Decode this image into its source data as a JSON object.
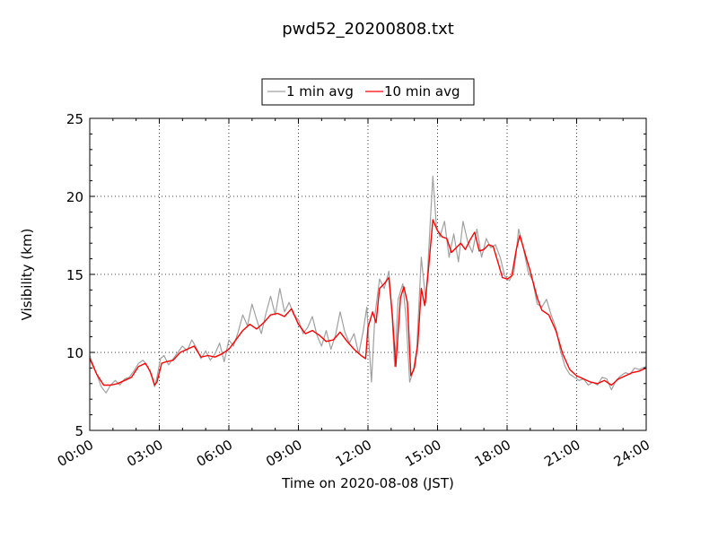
{
  "chart_data": {
    "type": "line",
    "title": "pwd52_20200808.txt",
    "xlabel": "Time on 2020-08-08 (JST)",
    "ylabel": "Visibility (km)",
    "x_unit": "hour of day",
    "xlim": [
      0,
      24
    ],
    "ylim": [
      5,
      25
    ],
    "grid": true,
    "legend_position": "top-center",
    "x_tick_labels": [
      "00:00",
      "03:00",
      "06:00",
      "09:00",
      "12:00",
      "15:00",
      "18:00",
      "21:00",
      "24:00"
    ],
    "y_tick_labels": [
      "5",
      "10",
      "15",
      "20",
      "25"
    ],
    "series": [
      {
        "name": "1 min avg",
        "color": "#a0a0a0",
        "points": [
          [
            0,
            9.8
          ],
          [
            0.3,
            8.6
          ],
          [
            0.5,
            7.8
          ],
          [
            0.7,
            7.4
          ],
          [
            0.9,
            7.9
          ],
          [
            1.1,
            8.2
          ],
          [
            1.3,
            7.9
          ],
          [
            1.5,
            8.3
          ],
          [
            1.7,
            8.4
          ],
          [
            1.9,
            8.8
          ],
          [
            2.1,
            9.3
          ],
          [
            2.3,
            9.5
          ],
          [
            2.5,
            9.1
          ],
          [
            2.7,
            8.4
          ],
          [
            2.8,
            7.8
          ],
          [
            2.9,
            8.4
          ],
          [
            3.05,
            9.6
          ],
          [
            3.2,
            9.8
          ],
          [
            3.4,
            9.2
          ],
          [
            3.6,
            9.6
          ],
          [
            3.8,
            10.0
          ],
          [
            4.0,
            10.4
          ],
          [
            4.2,
            10.1
          ],
          [
            4.4,
            10.8
          ],
          [
            4.6,
            10.3
          ],
          [
            4.8,
            9.6
          ],
          [
            5.0,
            10.1
          ],
          [
            5.2,
            9.5
          ],
          [
            5.4,
            9.9
          ],
          [
            5.6,
            10.6
          ],
          [
            5.8,
            9.4
          ],
          [
            6.0,
            10.8
          ],
          [
            6.2,
            10.4
          ],
          [
            6.4,
            11.3
          ],
          [
            6.6,
            12.4
          ],
          [
            6.8,
            11.7
          ],
          [
            7.0,
            13.1
          ],
          [
            7.2,
            12.1
          ],
          [
            7.4,
            11.2
          ],
          [
            7.6,
            12.5
          ],
          [
            7.8,
            13.6
          ],
          [
            8.0,
            12.4
          ],
          [
            8.2,
            14.1
          ],
          [
            8.4,
            12.6
          ],
          [
            8.6,
            13.2
          ],
          [
            8.8,
            12.4
          ],
          [
            9.0,
            12.1
          ],
          [
            9.2,
            11.2
          ],
          [
            9.4,
            11.6
          ],
          [
            9.6,
            12.3
          ],
          [
            9.8,
            11.1
          ],
          [
            10.0,
            10.4
          ],
          [
            10.2,
            11.4
          ],
          [
            10.4,
            10.2
          ],
          [
            10.6,
            11.1
          ],
          [
            10.8,
            12.6
          ],
          [
            11.0,
            11.3
          ],
          [
            11.2,
            10.6
          ],
          [
            11.4,
            11.2
          ],
          [
            11.6,
            9.9
          ],
          [
            11.8,
            11.4
          ],
          [
            11.95,
            12.9
          ],
          [
            12.05,
            10.4
          ],
          [
            12.15,
            8.1
          ],
          [
            12.3,
            12.4
          ],
          [
            12.5,
            14.7
          ],
          [
            12.7,
            14.1
          ],
          [
            12.9,
            15.2
          ],
          [
            13.05,
            12.1
          ],
          [
            13.15,
            9.1
          ],
          [
            13.3,
            13.4
          ],
          [
            13.5,
            14.4
          ],
          [
            13.65,
            12.1
          ],
          [
            13.8,
            8.1
          ],
          [
            13.95,
            8.8
          ],
          [
            14.1,
            10.2
          ],
          [
            14.3,
            16.1
          ],
          [
            14.5,
            13.2
          ],
          [
            14.65,
            17.4
          ],
          [
            14.8,
            21.3
          ],
          [
            14.95,
            18.1
          ],
          [
            15.1,
            17.4
          ],
          [
            15.3,
            18.4
          ],
          [
            15.5,
            16.1
          ],
          [
            15.7,
            17.6
          ],
          [
            15.9,
            15.8
          ],
          [
            16.1,
            18.4
          ],
          [
            16.3,
            17.1
          ],
          [
            16.5,
            16.4
          ],
          [
            16.7,
            17.9
          ],
          [
            16.9,
            16.1
          ],
          [
            17.1,
            17.3
          ],
          [
            17.3,
            16.7
          ],
          [
            17.5,
            16.9
          ],
          [
            17.7,
            16.1
          ],
          [
            17.9,
            14.9
          ],
          [
            18.1,
            14.6
          ],
          [
            18.3,
            15.2
          ],
          [
            18.5,
            17.9
          ],
          [
            18.7,
            16.7
          ],
          [
            18.9,
            15.2
          ],
          [
            19.1,
            14.6
          ],
          [
            19.3,
            13.1
          ],
          [
            19.5,
            12.9
          ],
          [
            19.7,
            13.4
          ],
          [
            19.9,
            12.4
          ],
          [
            20.1,
            11.6
          ],
          [
            20.3,
            10.1
          ],
          [
            20.5,
            9.1
          ],
          [
            20.7,
            8.6
          ],
          [
            20.9,
            8.4
          ],
          [
            21.1,
            8.2
          ],
          [
            21.3,
            8.3
          ],
          [
            21.5,
            7.9
          ],
          [
            21.7,
            8.1
          ],
          [
            21.9,
            7.9
          ],
          [
            22.1,
            8.4
          ],
          [
            22.3,
            8.3
          ],
          [
            22.5,
            7.6
          ],
          [
            22.7,
            8.2
          ],
          [
            22.9,
            8.5
          ],
          [
            23.1,
            8.7
          ],
          [
            23.3,
            8.6
          ],
          [
            23.5,
            9.0
          ],
          [
            23.7,
            8.9
          ],
          [
            24.0,
            9.1
          ]
        ]
      },
      {
        "name": "10 min avg",
        "color": "#ff0000",
        "points": [
          [
            0,
            9.6
          ],
          [
            0.3,
            8.6
          ],
          [
            0.6,
            7.9
          ],
          [
            0.9,
            7.9
          ],
          [
            1.2,
            8.0
          ],
          [
            1.5,
            8.2
          ],
          [
            1.8,
            8.4
          ],
          [
            2.1,
            9.1
          ],
          [
            2.4,
            9.3
          ],
          [
            2.6,
            8.8
          ],
          [
            2.8,
            7.9
          ],
          [
            2.9,
            8.1
          ],
          [
            3.1,
            9.3
          ],
          [
            3.3,
            9.4
          ],
          [
            3.6,
            9.5
          ],
          [
            3.9,
            10.0
          ],
          [
            4.2,
            10.2
          ],
          [
            4.5,
            10.4
          ],
          [
            4.8,
            9.7
          ],
          [
            5.1,
            9.8
          ],
          [
            5.4,
            9.7
          ],
          [
            5.7,
            9.9
          ],
          [
            6.0,
            10.2
          ],
          [
            6.3,
            10.8
          ],
          [
            6.6,
            11.4
          ],
          [
            6.9,
            11.8
          ],
          [
            7.2,
            11.5
          ],
          [
            7.5,
            11.9
          ],
          [
            7.8,
            12.4
          ],
          [
            8.1,
            12.5
          ],
          [
            8.4,
            12.3
          ],
          [
            8.7,
            12.8
          ],
          [
            9.0,
            11.8
          ],
          [
            9.3,
            11.2
          ],
          [
            9.6,
            11.4
          ],
          [
            9.9,
            11.1
          ],
          [
            10.2,
            10.7
          ],
          [
            10.5,
            10.8
          ],
          [
            10.8,
            11.3
          ],
          [
            11.1,
            10.7
          ],
          [
            11.4,
            10.2
          ],
          [
            11.7,
            9.8
          ],
          [
            11.9,
            9.6
          ],
          [
            12.0,
            11.6
          ],
          [
            12.2,
            12.6
          ],
          [
            12.35,
            11.9
          ],
          [
            12.5,
            14.1
          ],
          [
            12.7,
            14.4
          ],
          [
            12.9,
            14.8
          ],
          [
            13.05,
            12.4
          ],
          [
            13.2,
            9.1
          ],
          [
            13.4,
            13.5
          ],
          [
            13.55,
            14.2
          ],
          [
            13.7,
            13.2
          ],
          [
            13.85,
            8.5
          ],
          [
            14.0,
            9.0
          ],
          [
            14.15,
            10.5
          ],
          [
            14.3,
            14.1
          ],
          [
            14.45,
            13.0
          ],
          [
            14.6,
            15.2
          ],
          [
            14.8,
            18.5
          ],
          [
            15.0,
            17.8
          ],
          [
            15.2,
            17.4
          ],
          [
            15.4,
            17.3
          ],
          [
            15.6,
            16.4
          ],
          [
            15.8,
            16.7
          ],
          [
            16.0,
            17.0
          ],
          [
            16.2,
            16.6
          ],
          [
            16.4,
            17.2
          ],
          [
            16.6,
            17.7
          ],
          [
            16.8,
            16.5
          ],
          [
            17.0,
            16.6
          ],
          [
            17.2,
            16.9
          ],
          [
            17.4,
            16.8
          ],
          [
            17.6,
            15.8
          ],
          [
            17.8,
            14.8
          ],
          [
            18.0,
            14.7
          ],
          [
            18.2,
            14.9
          ],
          [
            18.4,
            16.6
          ],
          [
            18.55,
            17.5
          ],
          [
            18.8,
            16.2
          ],
          [
            19.0,
            15.2
          ],
          [
            19.3,
            13.5
          ],
          [
            19.5,
            12.7
          ],
          [
            19.8,
            12.4
          ],
          [
            20.1,
            11.4
          ],
          [
            20.4,
            9.9
          ],
          [
            20.7,
            8.9
          ],
          [
            21.0,
            8.5
          ],
          [
            21.3,
            8.3
          ],
          [
            21.6,
            8.1
          ],
          [
            21.9,
            8.0
          ],
          [
            22.2,
            8.2
          ],
          [
            22.5,
            7.9
          ],
          [
            22.8,
            8.3
          ],
          [
            23.1,
            8.5
          ],
          [
            23.4,
            8.7
          ],
          [
            23.7,
            8.8
          ],
          [
            24.0,
            9.0
          ]
        ]
      }
    ]
  }
}
